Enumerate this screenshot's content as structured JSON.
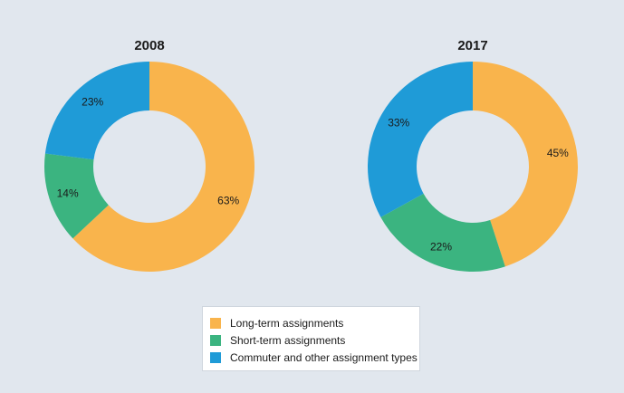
{
  "colors": {
    "long": "#f9b44c",
    "short": "#3bb480",
    "commuter": "#1f9bd7"
  },
  "chart_data": [
    {
      "type": "pie",
      "title": "2008",
      "donut": true,
      "categories": [
        "Long-term assignments",
        "Short-term assignments",
        "Commuter and other assignment types"
      ],
      "values": [
        63,
        14,
        23
      ],
      "labels": [
        "63%",
        "14%",
        "23%"
      ]
    },
    {
      "type": "pie",
      "title": "2017",
      "donut": true,
      "categories": [
        "Long-term assignments",
        "Short-term assignments",
        "Commuter and other assignment types"
      ],
      "values": [
        45,
        22,
        33
      ],
      "labels": [
        "45%",
        "22%",
        "33%"
      ]
    }
  ],
  "legend": {
    "items": [
      {
        "label": "Long-term assignments",
        "color_key": "long"
      },
      {
        "label": "Short-term assignments",
        "color_key": "short"
      },
      {
        "label": "Commuter and other assignment types",
        "color_key": "commuter"
      }
    ]
  }
}
